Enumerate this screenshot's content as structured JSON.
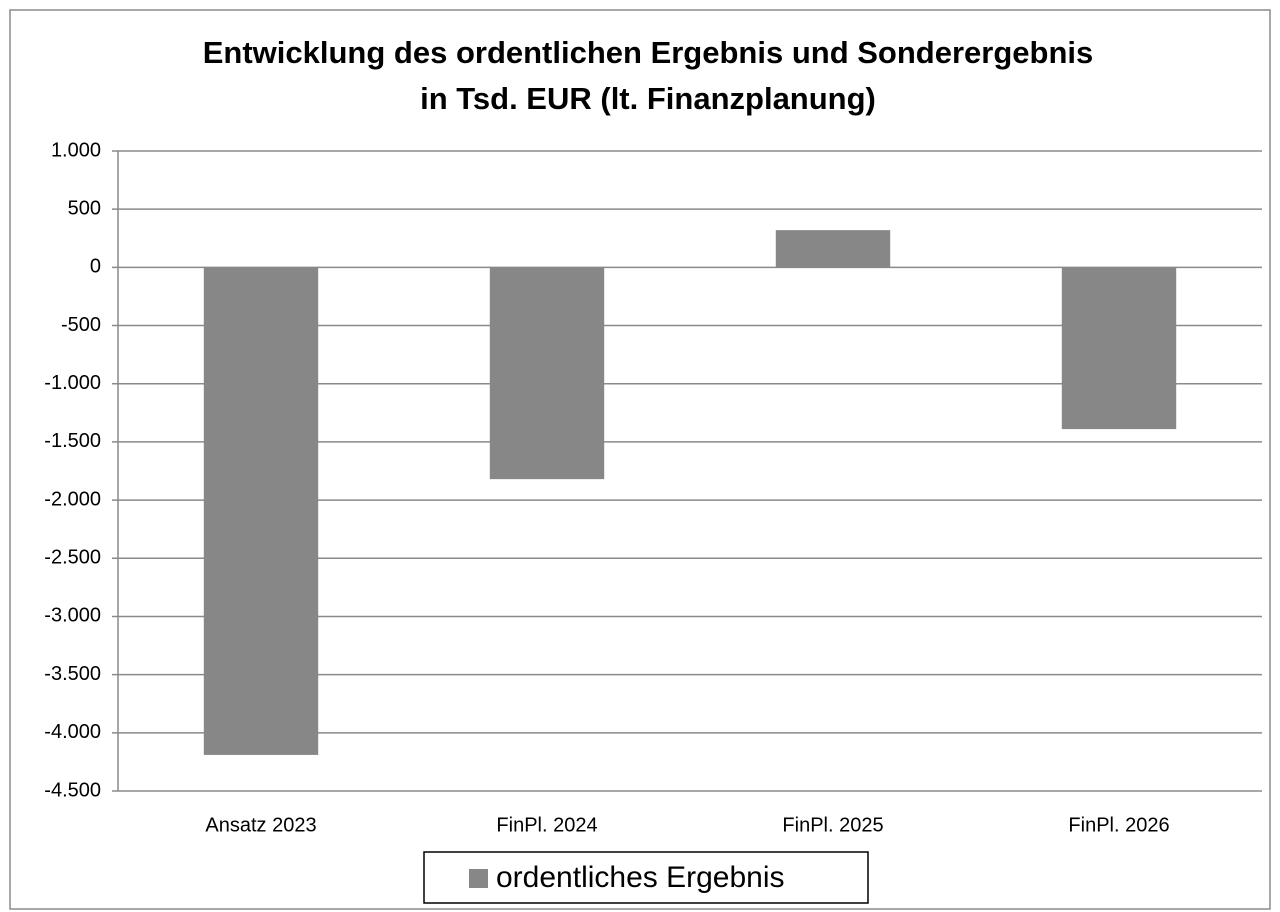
{
  "chart_data": {
    "type": "bar",
    "title": [
      "Entwicklung des ordentlichen Ergebnis und Sonderergebnis",
      "in Tsd. EUR (lt. Finanzplanung)"
    ],
    "categories": [
      "Ansatz 2023",
      "FinPl. 2024",
      "FinPl. 2025",
      "FinPl. 2026"
    ],
    "series": [
      {
        "name": "ordentliches Ergebnis",
        "color": "#878787",
        "values": [
          -4190,
          -1820,
          320,
          -1390
        ]
      }
    ],
    "ylim": [
      -4500,
      1000
    ],
    "yticks": [
      {
        "value": 1000,
        "label": "1.000"
      },
      500,
      0,
      -500,
      {
        "value": -1000,
        "label": "-1.000"
      },
      {
        "value": -1500,
        "label": "-1.500"
      },
      {
        "value": -2000,
        "label": "-2.000"
      },
      {
        "value": -2500,
        "label": "-2.500"
      },
      {
        "value": -3000,
        "label": "-3.000"
      },
      {
        "value": -3500,
        "label": "-3.500"
      },
      {
        "value": -4000,
        "label": "-4.000"
      },
      {
        "value": -4500,
        "label": "-4.500"
      }
    ],
    "grid": true,
    "legend": "bottom"
  }
}
